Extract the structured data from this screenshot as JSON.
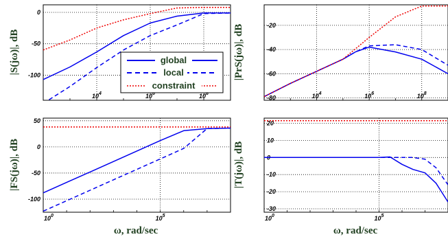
{
  "colors": {
    "global": "#0000ee",
    "local": "#0000ee",
    "constraint": "#ee0000",
    "label": "#1f3f1f"
  },
  "legend": {
    "entries": [
      "global",
      "local",
      "constraint"
    ]
  },
  "chart_data": [
    {
      "type": "line",
      "ylabel": "|S(jω)|, dB",
      "xlabel": "",
      "x_scale": "log",
      "xlim": [
        100.0,
        1000000000.0
      ],
      "ylim": [
        -140,
        12
      ],
      "x_ticks": [
        {
          "v": 10000.0,
          "label": "10",
          "exp": "4"
        },
        {
          "v": 1000000.0,
          "label": "10",
          "exp": "6"
        },
        {
          "v": 100000000.0,
          "label": "10",
          "exp": "8"
        }
      ],
      "y_ticks": [
        {
          "v": 0,
          "label": "0"
        },
        {
          "v": -50,
          "label": "-50"
        },
        {
          "v": -100,
          "label": "-100"
        }
      ],
      "grid": true,
      "legend": "center-right",
      "series": [
        {
          "name": "global",
          "style": "solid",
          "x": [
            100.0,
            1000.0,
            10000.0,
            100000.0,
            1000000.0,
            10000000.0,
            100000000.0,
            1000000000.0
          ],
          "y": [
            -107,
            -87,
            -63,
            -37,
            -17,
            -6,
            -1,
            -1
          ]
        },
        {
          "name": "local",
          "style": "dashed",
          "x": [
            100.0,
            1000.0,
            10000.0,
            100000.0,
            1000000.0,
            10000000.0,
            100000000.0,
            1000000000.0
          ],
          "y": [
            -145,
            -118,
            -88,
            -60,
            -37,
            -20,
            -2,
            -1
          ]
        },
        {
          "name": "constraint",
          "style": "dotted",
          "x": [
            100.0,
            1000.0,
            10000.0,
            100000.0,
            1000000.0,
            10000000.0,
            100000000.0,
            1000000000.0
          ],
          "y": [
            -60,
            -44,
            -25,
            -12,
            -2,
            7,
            8,
            8
          ]
        }
      ]
    },
    {
      "type": "line",
      "ylabel": "|PrS(jω)|, dB",
      "xlabel": "",
      "x_scale": "log",
      "xlim": [
        100.0,
        1000000000.0
      ],
      "ylim": [
        -82,
        -3
      ],
      "x_ticks": [
        {
          "v": 10000.0,
          "label": "10",
          "exp": "4"
        },
        {
          "v": 1000000.0,
          "label": "10",
          "exp": "6"
        },
        {
          "v": 100000000.0,
          "label": "10",
          "exp": "8"
        }
      ],
      "y_ticks": [
        {
          "v": -20,
          "label": "-20"
        },
        {
          "v": -40,
          "label": "-40"
        },
        {
          "v": -60,
          "label": "-60"
        },
        {
          "v": -80,
          "label": "-80"
        }
      ],
      "grid": true,
      "series": [
        {
          "name": "global",
          "style": "solid",
          "x": [
            100.0,
            1000.0,
            10000.0,
            100000.0,
            300000.0,
            1000000.0,
            10000000.0,
            100000000.0,
            1000000000.0
          ],
          "y": [
            -79,
            -68,
            -58,
            -48,
            -42,
            -38,
            -42,
            -48,
            -60
          ]
        },
        {
          "name": "local",
          "style": "dashed",
          "x": [
            100.0,
            1000.0,
            10000.0,
            100000.0,
            300000.0,
            1000000.0,
            10000000.0,
            100000000.0,
            1000000000.0
          ],
          "y": [
            -79,
            -68,
            -58,
            -48,
            -42,
            -37,
            -36,
            -40,
            -53
          ]
        },
        {
          "name": "constraint",
          "style": "dotted",
          "x": [
            100.0,
            1000.0,
            10000.0,
            100000.0,
            1000000.0,
            10000000.0,
            100000000.0,
            1000000000.0
          ],
          "y": [
            -79,
            -68,
            -58,
            -48,
            -30,
            -13,
            -4,
            -4
          ]
        }
      ]
    },
    {
      "type": "line",
      "ylabel": "|FS(jω)|, dB",
      "xlabel": "ω, rad/sec",
      "x_scale": "log",
      "xlim": [
        1.0,
        100000000.0
      ],
      "ylim": [
        -125,
        55
      ],
      "x_ticks": [
        {
          "v": 1.0,
          "label": "10",
          "exp": "0"
        },
        {
          "v": 100000.0,
          "label": "10",
          "exp": "5"
        }
      ],
      "y_ticks": [
        {
          "v": 50,
          "label": "50"
        },
        {
          "v": 0,
          "label": "0"
        },
        {
          "v": -50,
          "label": "-50"
        },
        {
          "v": -100,
          "label": "-100"
        }
      ],
      "grid": true,
      "series": [
        {
          "name": "global",
          "style": "solid",
          "x": [
            1.0,
            10.0,
            100.0,
            1000.0,
            10000.0,
            100000.0,
            1000000.0,
            10000000.0,
            100000000.0
          ],
          "y": [
            -88,
            -68,
            -48,
            -28,
            -8,
            12,
            31,
            35,
            36
          ]
        },
        {
          "name": "local",
          "style": "dashed",
          "x": [
            1.0,
            10.0,
            100.0,
            1000.0,
            10000.0,
            100000.0,
            1000000.0,
            10000000.0,
            100000000.0
          ],
          "y": [
            -123,
            -103,
            -83,
            -63,
            -43,
            -23,
            -3,
            35,
            36
          ]
        },
        {
          "name": "constraint",
          "style": "dotted",
          "x": [
            1.0,
            100000000.0
          ],
          "y": [
            38,
            38
          ]
        }
      ]
    },
    {
      "type": "line",
      "ylabel": "|T(jω)|, dB",
      "xlabel": "ω, rad/sec",
      "x_scale": "log",
      "xlim": [
        1.0,
        100000000.0
      ],
      "ylim": [
        -32,
        23
      ],
      "x_ticks": [
        {
          "v": 1.0,
          "label": "10",
          "exp": "0"
        },
        {
          "v": 100000.0,
          "label": "10",
          "exp": "5"
        }
      ],
      "y_ticks": [
        {
          "v": 20,
          "label": "20"
        },
        {
          "v": 10,
          "label": "10"
        },
        {
          "v": 0,
          "label": "0"
        },
        {
          "v": -10,
          "label": "-10"
        },
        {
          "v": -20,
          "label": "-20"
        },
        {
          "v": -30,
          "label": "-30"
        }
      ],
      "grid": true,
      "series": [
        {
          "name": "global",
          "style": "solid",
          "x": [
            1.0,
            1000.0,
            100000.0,
            300000.0,
            1000000.0,
            3000000.0,
            10000000.0,
            30000000.0,
            100000000.0
          ],
          "y": [
            0,
            0,
            0,
            0.3,
            -4,
            -7,
            -9,
            -15,
            -26
          ]
        },
        {
          "name": "local",
          "style": "dashed",
          "x": [
            1.0,
            1000.0,
            100000.0,
            1000000.0,
            3000000.0,
            10000000.0,
            30000000.0,
            100000000.0
          ],
          "y": [
            0,
            0,
            0,
            0,
            0,
            -1,
            -6,
            -16
          ]
        },
        {
          "name": "constraint",
          "style": "dotted",
          "x": [
            1.0,
            100000000.0
          ],
          "y": [
            21.5,
            21.5
          ]
        }
      ]
    }
  ]
}
